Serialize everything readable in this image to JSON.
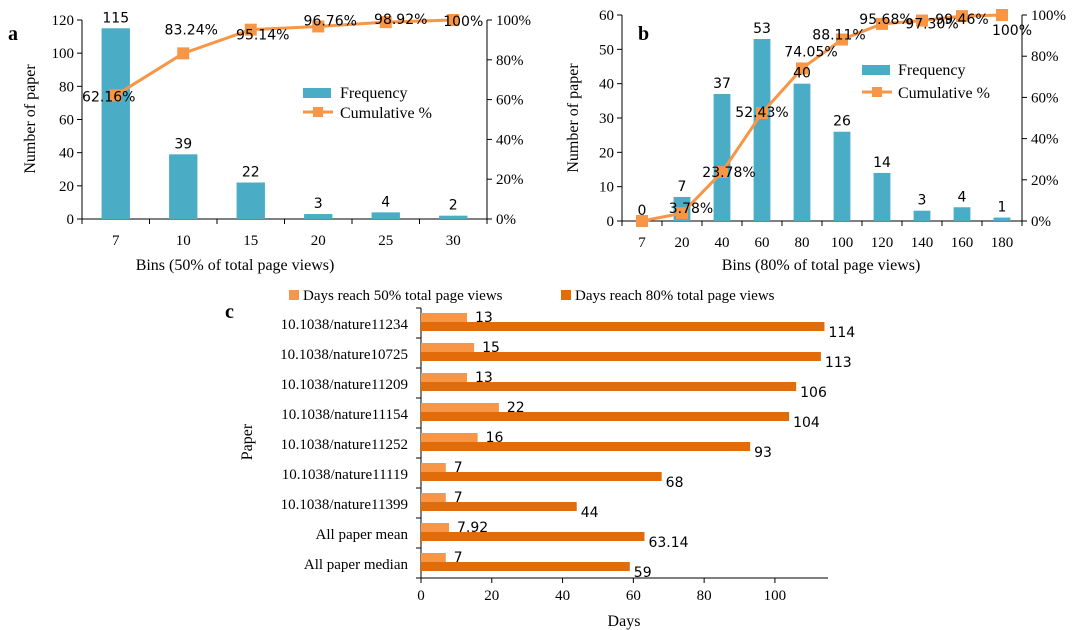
{
  "colors": {
    "frequency_bar": "#4BACC6",
    "cumulative_line": "#F79646",
    "days50_bar": "#F79646",
    "days80_bar": "#E36C0A",
    "axis": "#000000"
  },
  "chart_data": [
    {
      "id": "a",
      "panel_label": "a",
      "type": "bar",
      "categories": [
        "7",
        "10",
        "15",
        "20",
        "25",
        "30"
      ],
      "series": [
        {
          "name": "Frequency",
          "values": [
            115,
            39,
            22,
            3,
            4,
            2
          ],
          "data_labels": [
            "115",
            "39",
            "22",
            "3",
            "4",
            "2"
          ]
        },
        {
          "name": "Cumulative %",
          "type": "line",
          "axis": "right",
          "values": [
            62.16,
            83.24,
            95.14,
            96.76,
            98.92,
            100
          ],
          "data_labels": [
            "62.16%",
            "83.24%",
            "95.14%",
            "96.76%",
            "98.92%",
            "100%"
          ]
        }
      ],
      "xlabel": "Bins (50% of total page views)",
      "ylabel": "Number of paper",
      "ylim": [
        0,
        120
      ],
      "yticks": [
        "0",
        "20",
        "40",
        "60",
        "80",
        "100",
        "120"
      ],
      "y2lim": [
        0,
        100
      ],
      "y2ticks": [
        "0%",
        "20%",
        "40%",
        "60%",
        "80%",
        "100%"
      ],
      "legend": "right"
    },
    {
      "id": "b",
      "panel_label": "b",
      "type": "bar",
      "categories": [
        "7",
        "20",
        "40",
        "60",
        "80",
        "100",
        "120",
        "140",
        "160",
        "180"
      ],
      "series": [
        {
          "name": "Frequency",
          "values": [
            0,
            7,
            37,
            53,
            40,
            26,
            14,
            3,
            4,
            1
          ],
          "data_labels": [
            "0",
            "7",
            "37",
            "53",
            "40",
            "26",
            "14",
            "3",
            "4",
            "1"
          ]
        },
        {
          "name": "Cumulative %",
          "type": "line",
          "axis": "right",
          "values": [
            0,
            3.78,
            23.78,
            52.43,
            74.05,
            88.11,
            95.68,
            97.3,
            99.46,
            100
          ],
          "data_labels": [
            "",
            "3.78%",
            "23.78%",
            "52.43%",
            "74.05%",
            "88.11%",
            "95.68%",
            "97.30%",
            "99.46%",
            "100%"
          ]
        }
      ],
      "xlabel": "Bins (80% of total page views)",
      "ylabel": "Number of paper",
      "ylim": [
        0,
        60
      ],
      "yticks": [
        "0",
        "10",
        "20",
        "30",
        "40",
        "50",
        "60"
      ],
      "y2lim": [
        0,
        100
      ],
      "y2ticks": [
        "0%",
        "20%",
        "40%",
        "60%",
        "80%",
        "100%"
      ],
      "legend": "right"
    },
    {
      "id": "c",
      "panel_label": "c",
      "type": "bar",
      "orientation": "horizontal",
      "categories": [
        "10.1038/nature11234",
        "10.1038/nature10725",
        "10.1038/nature11209",
        "10.1038/nature11154",
        "10.1038/nature11252",
        "10.1038/nature11119",
        "10.1038/nature11399",
        "All paper mean",
        "All paper median"
      ],
      "series": [
        {
          "name": "Days reach 50% total page views",
          "values": [
            13,
            15,
            13,
            22,
            16,
            7,
            7,
            7.92,
            7
          ],
          "data_labels": [
            "13",
            "15",
            "13",
            "22",
            "16",
            "7",
            "7",
            "7.92",
            "7"
          ]
        },
        {
          "name": "Days reach 80% total page views",
          "values": [
            114,
            113,
            106,
            104,
            93,
            68,
            44,
            63.14,
            59
          ],
          "data_labels": [
            "114",
            "113",
            "106",
            "104",
            "93",
            "68",
            "44",
            "63.14",
            "59"
          ]
        }
      ],
      "xlabel": "Days",
      "ylabel": "Paper",
      "xlim": [
        0,
        115
      ],
      "xticks": [
        "0",
        "20",
        "40",
        "60",
        "80",
        "100"
      ],
      "legend": "top"
    }
  ]
}
